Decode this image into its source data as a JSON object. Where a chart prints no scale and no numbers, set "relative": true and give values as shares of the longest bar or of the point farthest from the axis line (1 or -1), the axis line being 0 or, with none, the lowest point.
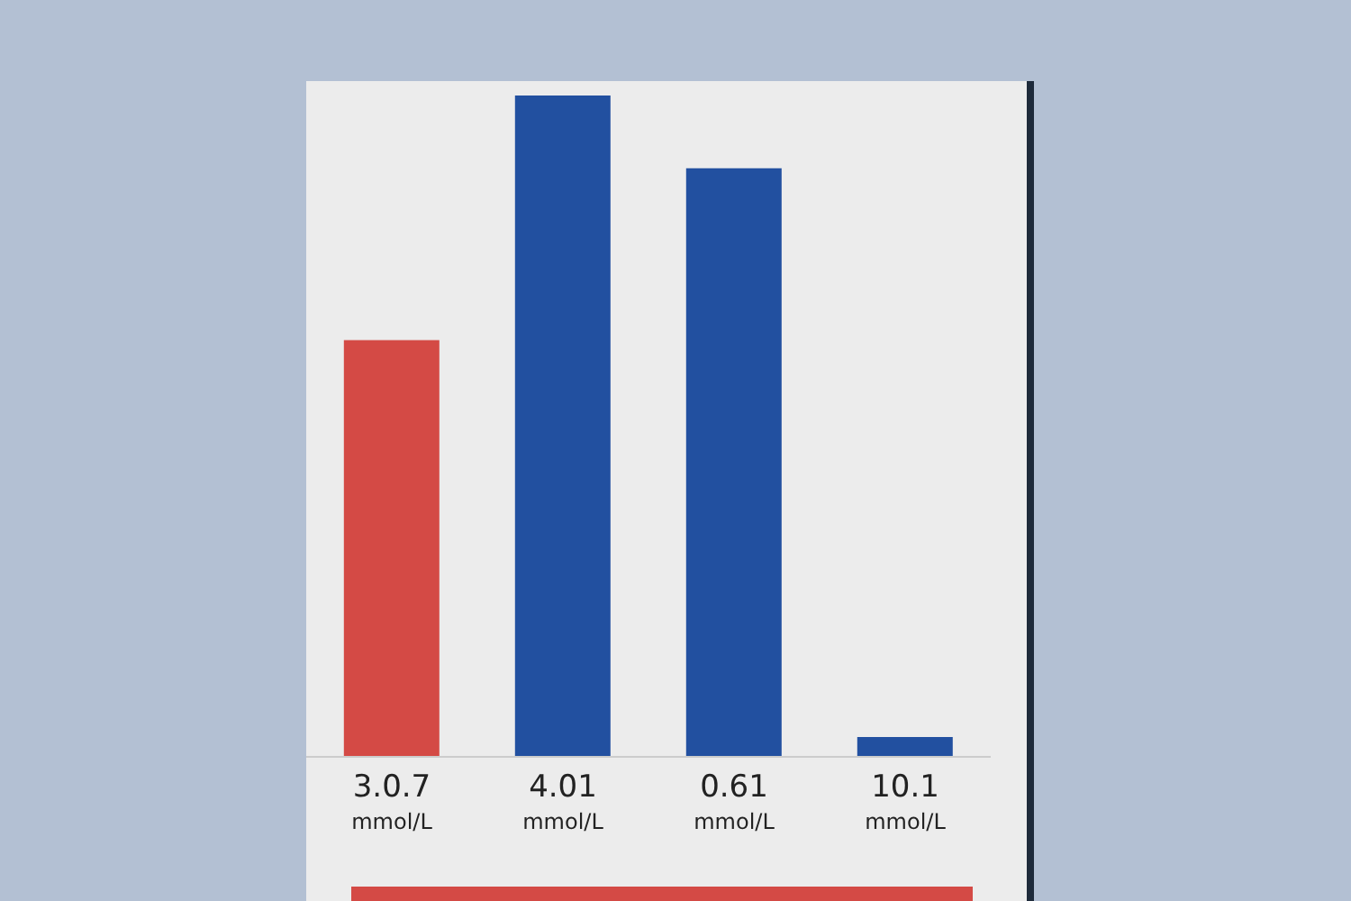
{
  "chart_data": {
    "type": "bar",
    "relative": true,
    "categories": [
      "3.0.7 mmol/L",
      "4.01 mmol/L",
      "0.61 mmol/L",
      "10.1 mmol/L"
    ],
    "values": [
      0.63,
      1,
      0.89,
      0.03
    ],
    "colors": [
      "#d44a45",
      "#2250a0",
      "#2250a0",
      "#2250a0"
    ]
  }
}
